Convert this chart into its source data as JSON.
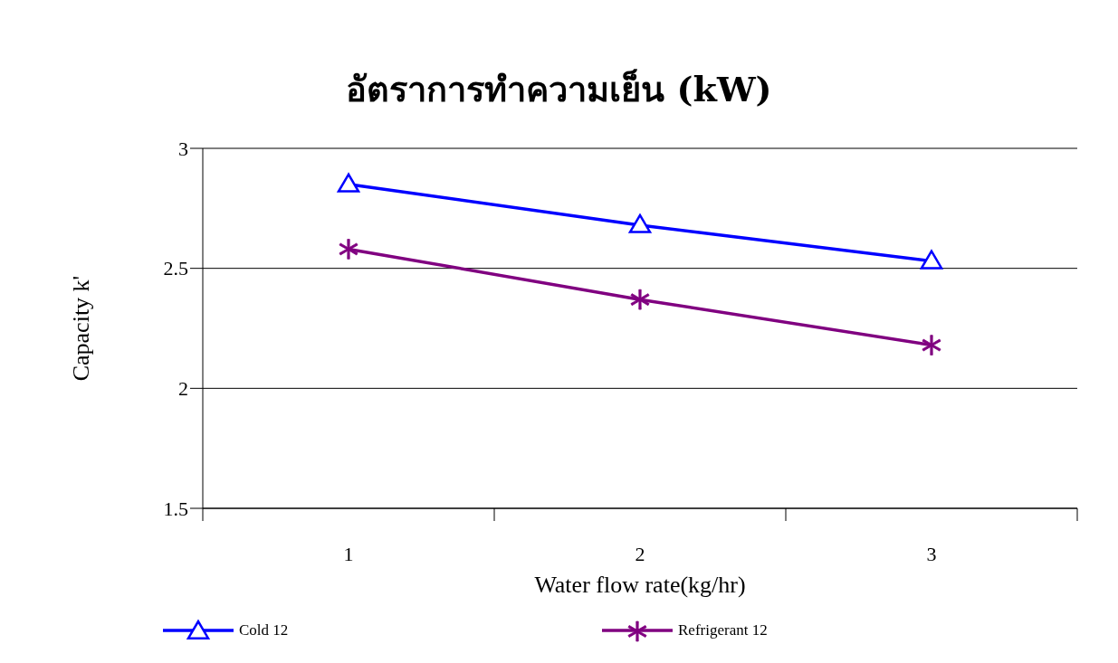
{
  "chart_data": {
    "type": "line",
    "title": "อัตราการทำความเย็น (kW)",
    "xlabel": "Water flow rate(kg/hr)",
    "ylabel": "Capacity k'",
    "categories": [
      "1",
      "2",
      "3"
    ],
    "series": [
      {
        "name": "Cold 12",
        "color": "#0000ff",
        "marker": "triangle",
        "values": [
          2.85,
          2.68,
          2.53
        ]
      },
      {
        "name": "Refrigerant 12",
        "color": "#800080",
        "marker": "cross",
        "values": [
          2.58,
          2.37,
          2.18
        ]
      }
    ],
    "ylim": [
      1.5,
      3
    ],
    "yticks": [
      1.5,
      2,
      2.5,
      3
    ],
    "grid": "y",
    "legend": "bottom",
    "line_style": "solid"
  }
}
